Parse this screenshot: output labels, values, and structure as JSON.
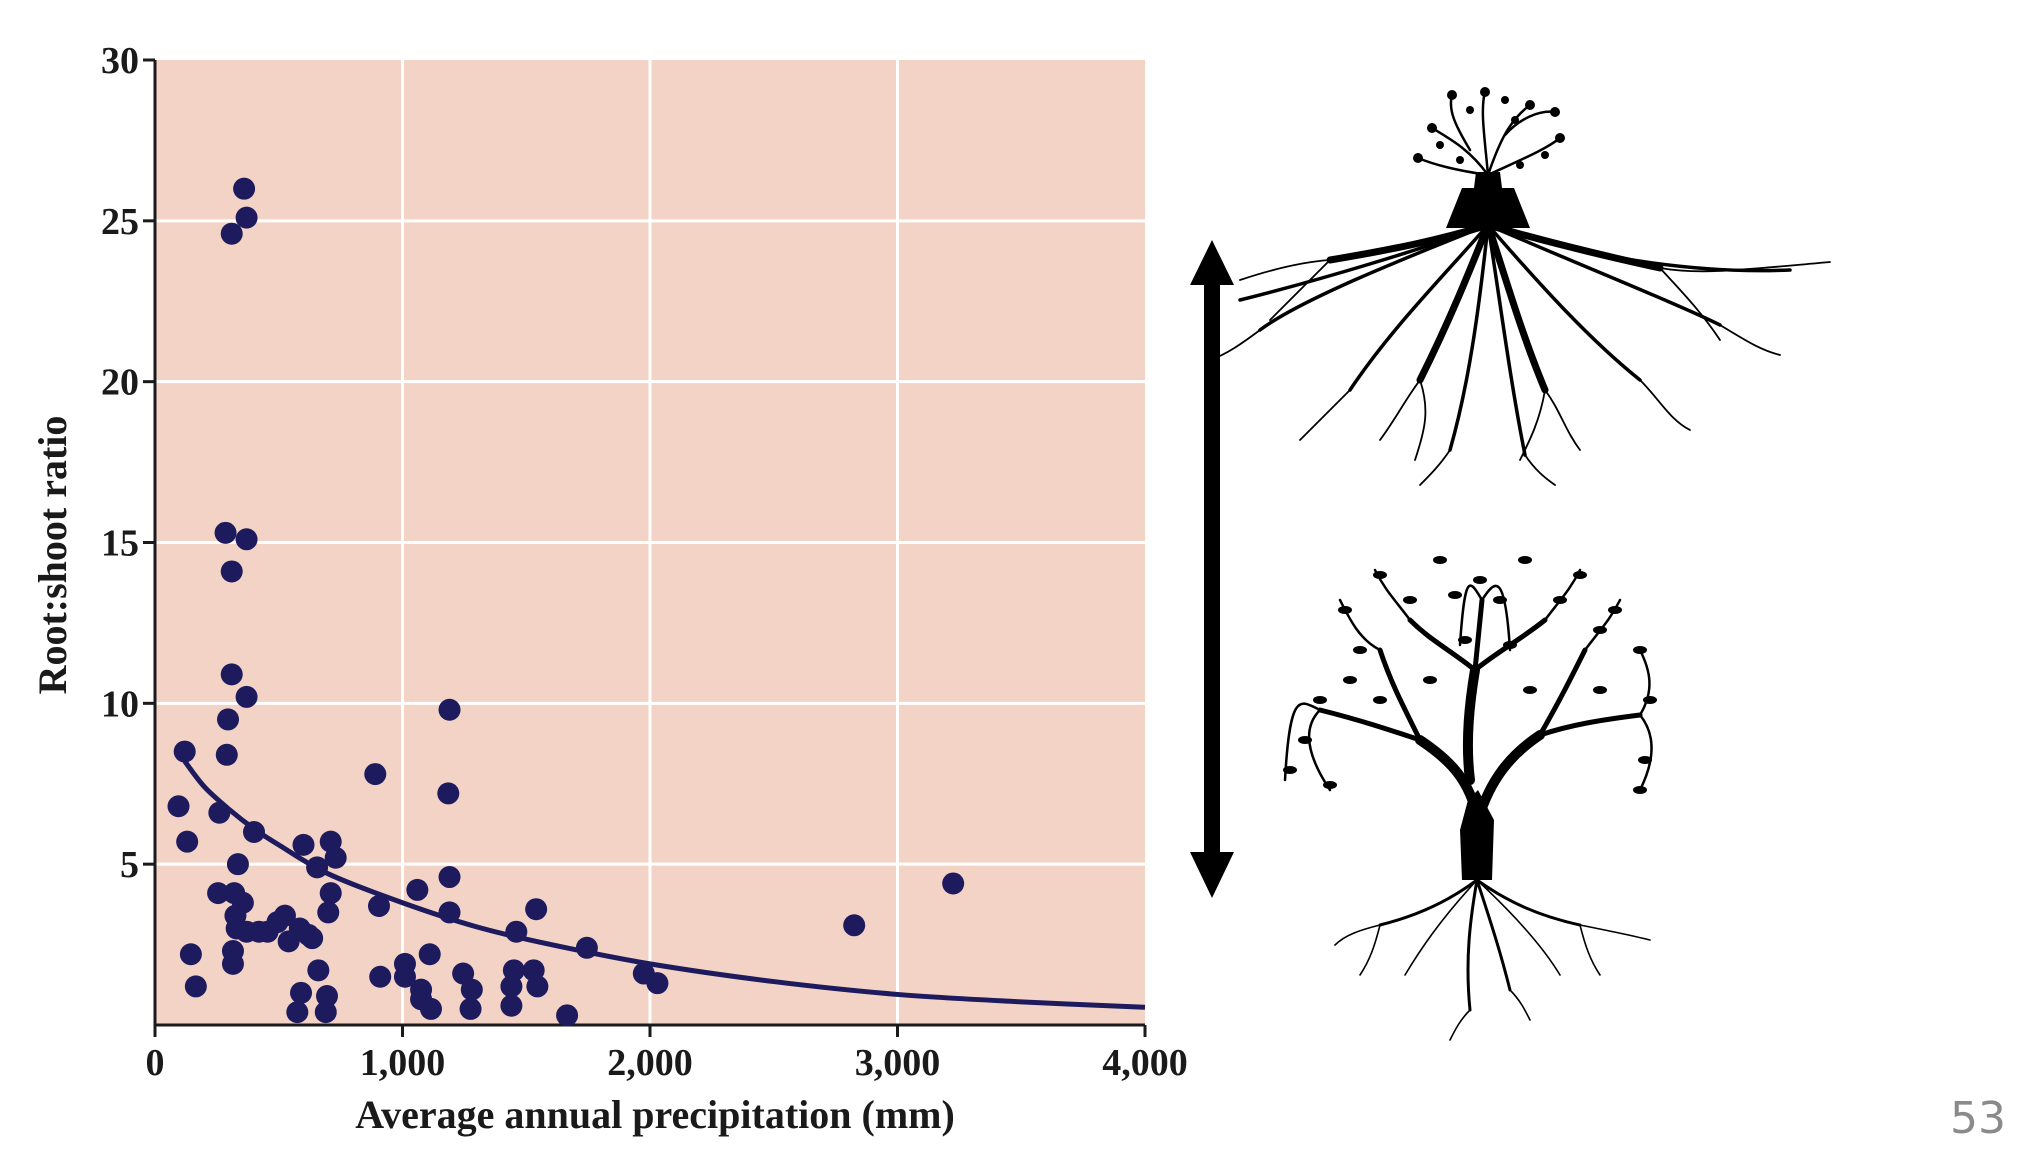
{
  "chart_data": {
    "type": "scatter",
    "title": "",
    "xlabel": "Average annual precipitation (mm)",
    "ylabel": "Root:shoot ratio",
    "xlim": [
      0,
      4000
    ],
    "ylim": [
      0,
      30
    ],
    "x_ticks": [
      0,
      1000,
      2000,
      3000,
      4000
    ],
    "x_tick_labels": [
      "0",
      "1,000",
      "2,000",
      "3,000",
      "4,000"
    ],
    "y_ticks": [
      5,
      10,
      15,
      20,
      25,
      30
    ],
    "y_tick_labels": [
      "5",
      "10",
      "15",
      "20",
      "25",
      "30"
    ],
    "grid": true,
    "background_color": "#f2d3c5",
    "point_color": "#1e1a5e",
    "curve_color": "#1e1a5e",
    "points": [
      {
        "x": 360,
        "y": 26.0
      },
      {
        "x": 370,
        "y": 25.1
      },
      {
        "x": 310,
        "y": 24.6
      },
      {
        "x": 285,
        "y": 15.3
      },
      {
        "x": 370,
        "y": 15.1
      },
      {
        "x": 310,
        "y": 14.1
      },
      {
        "x": 310,
        "y": 10.9
      },
      {
        "x": 370,
        "y": 10.2
      },
      {
        "x": 295,
        "y": 9.5
      },
      {
        "x": 290,
        "y": 8.4
      },
      {
        "x": 120,
        "y": 8.5
      },
      {
        "x": 95,
        "y": 6.8
      },
      {
        "x": 130,
        "y": 5.7
      },
      {
        "x": 260,
        "y": 6.6
      },
      {
        "x": 400,
        "y": 6.0
      },
      {
        "x": 335,
        "y": 5.0
      },
      {
        "x": 255,
        "y": 4.1
      },
      {
        "x": 320,
        "y": 4.1
      },
      {
        "x": 355,
        "y": 3.8
      },
      {
        "x": 325,
        "y": 3.4
      },
      {
        "x": 330,
        "y": 3.0
      },
      {
        "x": 370,
        "y": 2.9
      },
      {
        "x": 420,
        "y": 2.9
      },
      {
        "x": 455,
        "y": 2.9
      },
      {
        "x": 315,
        "y": 2.3
      },
      {
        "x": 315,
        "y": 1.9
      },
      {
        "x": 145,
        "y": 2.2
      },
      {
        "x": 165,
        "y": 1.2
      },
      {
        "x": 600,
        "y": 5.6
      },
      {
        "x": 710,
        "y": 5.7
      },
      {
        "x": 730,
        "y": 5.2
      },
      {
        "x": 655,
        "y": 4.9
      },
      {
        "x": 710,
        "y": 4.1
      },
      {
        "x": 525,
        "y": 3.4
      },
      {
        "x": 700,
        "y": 3.5
      },
      {
        "x": 495,
        "y": 3.2
      },
      {
        "x": 585,
        "y": 3.0
      },
      {
        "x": 620,
        "y": 2.8
      },
      {
        "x": 540,
        "y": 2.6
      },
      {
        "x": 635,
        "y": 2.7
      },
      {
        "x": 660,
        "y": 1.7
      },
      {
        "x": 590,
        "y": 1.0
      },
      {
        "x": 695,
        "y": 0.9
      },
      {
        "x": 575,
        "y": 0.4
      },
      {
        "x": 690,
        "y": 0.4
      },
      {
        "x": 890,
        "y": 7.8
      },
      {
        "x": 905,
        "y": 3.7
      },
      {
        "x": 910,
        "y": 1.5
      },
      {
        "x": 1010,
        "y": 1.9
      },
      {
        "x": 1010,
        "y": 1.5
      },
      {
        "x": 1075,
        "y": 1.1
      },
      {
        "x": 1060,
        "y": 4.2
      },
      {
        "x": 1110,
        "y": 2.2
      },
      {
        "x": 1075,
        "y": 0.8
      },
      {
        "x": 1115,
        "y": 0.5
      },
      {
        "x": 1190,
        "y": 9.8
      },
      {
        "x": 1185,
        "y": 7.2
      },
      {
        "x": 1190,
        "y": 4.6
      },
      {
        "x": 1190,
        "y": 3.5
      },
      {
        "x": 1245,
        "y": 1.6
      },
      {
        "x": 1280,
        "y": 1.1
      },
      {
        "x": 1275,
        "y": 0.5
      },
      {
        "x": 1460,
        "y": 2.9
      },
      {
        "x": 1450,
        "y": 1.7
      },
      {
        "x": 1440,
        "y": 1.2
      },
      {
        "x": 1440,
        "y": 0.6
      },
      {
        "x": 1540,
        "y": 3.6
      },
      {
        "x": 1530,
        "y": 1.7
      },
      {
        "x": 1545,
        "y": 1.2
      },
      {
        "x": 1665,
        "y": 0.3
      },
      {
        "x": 1745,
        "y": 2.4
      },
      {
        "x": 1975,
        "y": 1.6
      },
      {
        "x": 2030,
        "y": 1.3
      },
      {
        "x": 2825,
        "y": 3.1
      },
      {
        "x": 3225,
        "y": 4.4
      }
    ],
    "fit_curve": [
      {
        "x": 120,
        "y": 8.2
      },
      {
        "x": 200,
        "y": 7.4
      },
      {
        "x": 300,
        "y": 6.7
      },
      {
        "x": 400,
        "y": 6.1
      },
      {
        "x": 500,
        "y": 5.6
      },
      {
        "x": 700,
        "y": 4.7
      },
      {
        "x": 1000,
        "y": 3.8
      },
      {
        "x": 1300,
        "y": 3.05
      },
      {
        "x": 1600,
        "y": 2.5
      },
      {
        "x": 2000,
        "y": 1.9
      },
      {
        "x": 2500,
        "y": 1.35
      },
      {
        "x": 3000,
        "y": 0.95
      },
      {
        "x": 3500,
        "y": 0.72
      },
      {
        "x": 4000,
        "y": 0.55
      }
    ]
  },
  "slide": {
    "page_number": "53",
    "double_arrow_icon": "double-headed-vertical-arrow",
    "tree_top_icon": "tree-with-large-roots-icon",
    "tree_bottom_icon": "tree-with-small-roots-icon"
  }
}
